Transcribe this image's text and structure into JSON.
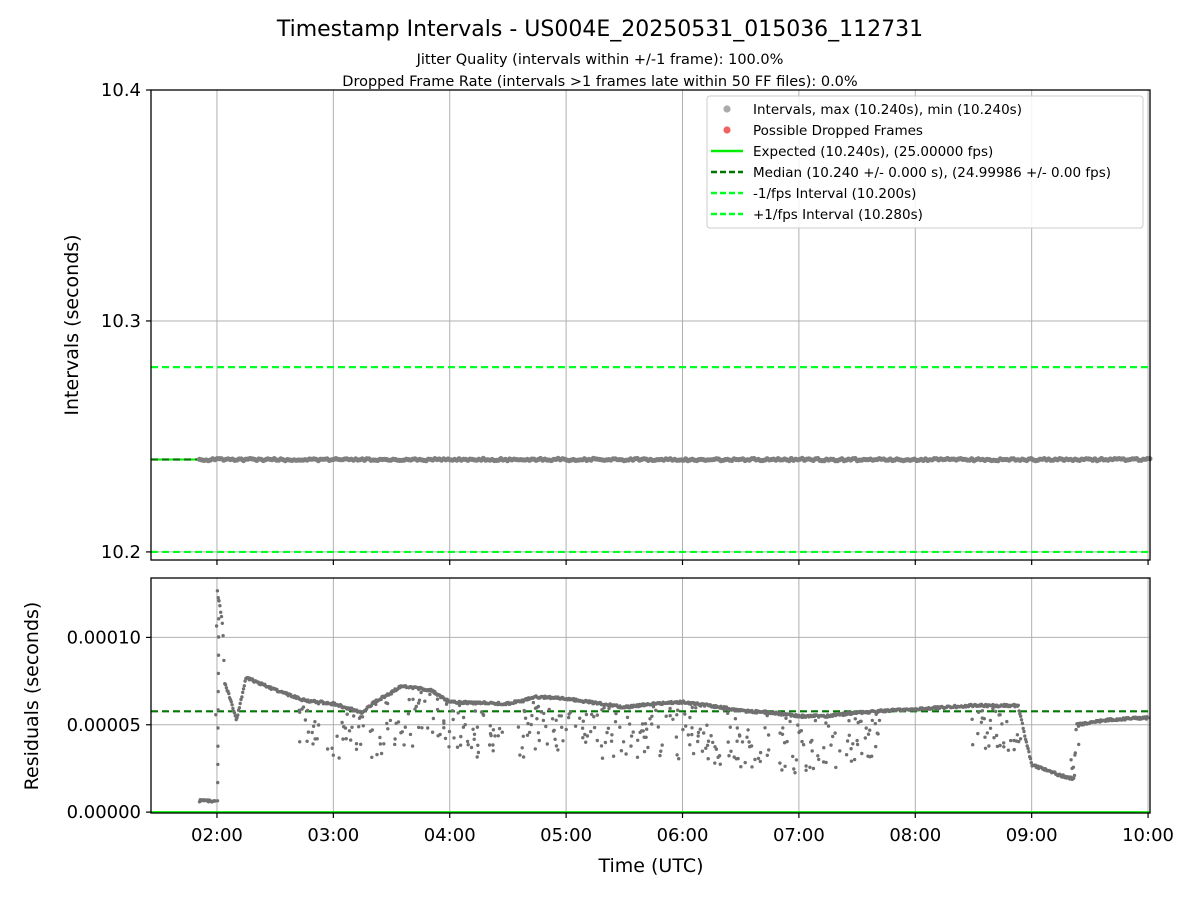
{
  "chart_data": {
    "type": "scatter",
    "title": "Timestamp Intervals - US004E_20250531_015036_112731",
    "subtitle_lines": [
      "Jitter Quality (intervals within +/-1 frame): 100.0%",
      "Dropped Frame Rate (intervals >1 frames late within 50 FF files): 0.0%"
    ],
    "x_label": "Time (UTC)",
    "x_tick_labels": [
      "02:00",
      "03:00",
      "04:00",
      "05:00",
      "06:00",
      "07:00",
      "08:00",
      "09:00",
      "10:00"
    ],
    "x_range": [
      "01:26",
      "10:01"
    ],
    "grid": true,
    "top_panel": {
      "y_label": "Intervals (seconds)",
      "y_tick_labels": [
        "10.2",
        "10.3",
        "10.4"
      ],
      "ylim": [
        10.1965,
        10.4
      ],
      "legend_position": "top-right",
      "legend": [
        {
          "label": "Intervals, max (10.240s), min (10.240s)",
          "kind": "dot",
          "color": "#aaaaaa"
        },
        {
          "label": "Possible Dropped Frames",
          "kind": "dot",
          "color": "#f06262"
        },
        {
          "label": "Expected (10.240s), (25.00000 fps)",
          "kind": "solid",
          "color": "#00ee00"
        },
        {
          "label": "Median (10.240 +/- 0.000 s), (24.99986 +/- 0.00 fps)",
          "kind": "dashed",
          "color": "#007700"
        },
        {
          "label": "-1/fps Interval (10.200s)",
          "kind": "dashed",
          "color": "#00ff22"
        },
        {
          "label": "+1/fps Interval (10.280s)",
          "kind": "dashed",
          "color": "#00ff22"
        }
      ],
      "reference_lines": [
        {
          "name": "Expected",
          "value": 10.24,
          "style": "solid",
          "color": "#00ee00"
        },
        {
          "name": "Median",
          "value": 10.24,
          "style": "dashed",
          "color": "#007700"
        },
        {
          "name": "-1/fps Interval",
          "value": 10.2,
          "style": "dashed",
          "color": "#00ff22"
        },
        {
          "name": "+1/fps Interval",
          "value": 10.28,
          "style": "dashed",
          "color": "#00ff22"
        }
      ],
      "intervals": {
        "x_start": "01:51",
        "x_end": "10:01",
        "value": 10.24,
        "color": "#808080"
      }
    },
    "bottom_panel": {
      "y_label": "Residuals (seconds)",
      "y_tick_labels": [
        "0.00000",
        "0.00005",
        "0.00010"
      ],
      "ylim": [
        -5e-07,
        0.000134
      ],
      "median_line": {
        "value": 5.77e-05,
        "color": "#007700"
      },
      "expected_line": {
        "value": 0.0,
        "color": "#00ee00"
      },
      "residual_trend": {
        "x": [
          "01:51",
          "01:59",
          "02:00",
          "02:03",
          "02:04",
          "02:07",
          "02:10",
          "02:15",
          "02:30",
          "02:45",
          "03:00",
          "03:15",
          "03:20",
          "03:35",
          "03:50",
          "04:00",
          "04:30",
          "04:45",
          "05:00",
          "05:30",
          "05:45",
          "06:00",
          "06:20",
          "06:30",
          "06:45",
          "07:00",
          "07:15",
          "07:30",
          "08:00",
          "08:30",
          "08:53",
          "09:00",
          "09:15",
          "09:22",
          "09:23",
          "09:40",
          "10:00"
        ],
        "y": [
          6.5e-06,
          6.5e-06,
          0.000128,
          0.000107,
          7.4e-05,
          6.45e-05,
          5.25e-05,
          7.7e-05,
          7e-05,
          6.4e-05,
          6.2e-05,
          5.7e-05,
          6.2e-05,
          7.2e-05,
          7e-05,
          6.3e-05,
          6.2e-05,
          6.6e-05,
          6.5e-05,
          6e-05,
          6.2e-05,
          6.3e-05,
          6e-05,
          5.8e-05,
          5.7e-05,
          5.5e-05,
          5.5e-05,
          5.7e-05,
          5.9e-05,
          6.1e-05,
          6.1e-05,
          2.7e-05,
          2.1e-05,
          1.9e-05,
          5e-05,
          5.3e-05,
          5.4e-05
        ]
      },
      "lower_branch": {
        "x": [
          "02:40",
          "03:10",
          "03:40",
          "04:10",
          "04:30",
          "05:00",
          "05:30",
          "06:00",
          "06:30",
          "06:45",
          "07:00",
          "08:30",
          "08:55"
        ],
        "y": [
          4e-05,
          2.8e-05,
          3.8e-05,
          3e-05,
          3.2e-05,
          3e-05,
          3e-05,
          3e-05,
          2.6e-05,
          2.5e-05,
          2.2e-05,
          3.8e-05,
          3.2e-05
        ]
      }
    }
  }
}
